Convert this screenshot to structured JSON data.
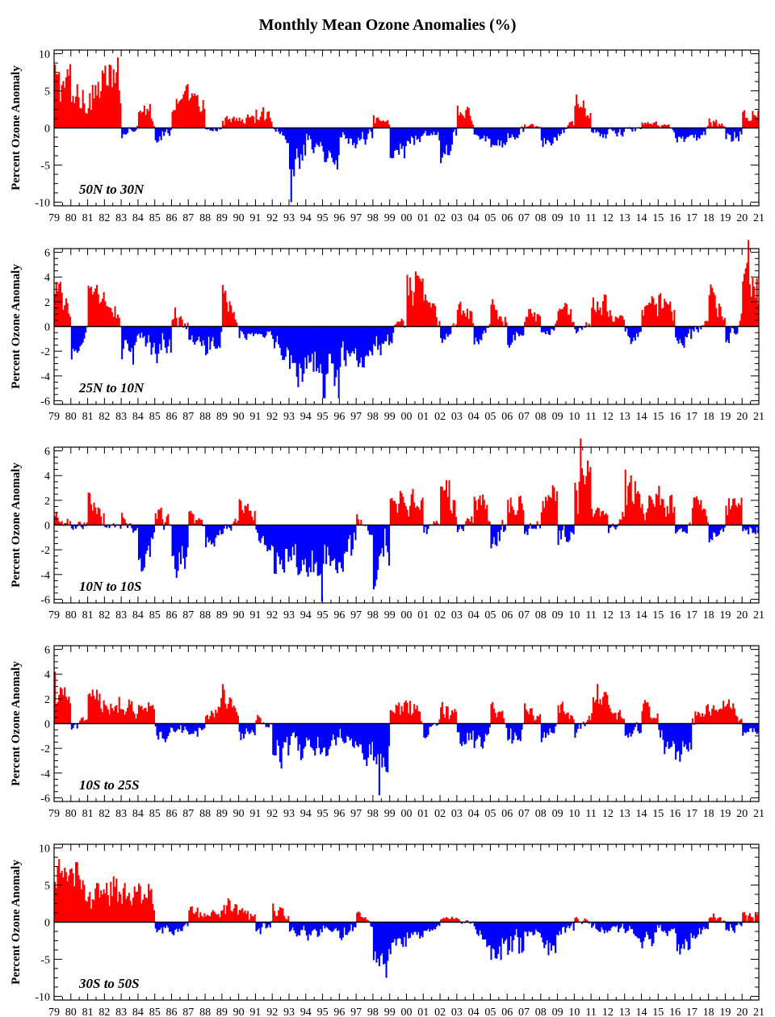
{
  "title": "Monthly Mean Ozone Anomalies (%)",
  "colors": {
    "positive": "#ff0000",
    "negative": "#0000ff",
    "axis": "#000000"
  },
  "chart_data": [
    {
      "type": "bar",
      "region": "50N to 30N",
      "ylabel": "Percent Ozone Anomaly",
      "ylim": [
        -10.5,
        10.5
      ],
      "yticks": [
        -10,
        -5,
        0,
        5,
        10
      ],
      "xlim": [
        1979,
        2021
      ],
      "xtick_labels": [
        "79",
        "80",
        "81",
        "82",
        "83",
        "84",
        "85",
        "86",
        "87",
        "88",
        "89",
        "90",
        "91",
        "92",
        "93",
        "94",
        "95",
        "96",
        "97",
        "98",
        "99",
        "00",
        "01",
        "02",
        "03",
        "04",
        "05",
        "06",
        "07",
        "08",
        "09",
        "10",
        "11",
        "12",
        "13",
        "14",
        "15",
        "16",
        "17",
        "18",
        "19",
        "20",
        "21"
      ],
      "months_per_year": 12,
      "annual_anomaly": [
        6.0,
        4.0,
        4.5,
        6.5,
        -0.8,
        3.0,
        -1.5,
        3.0,
        3.5,
        -0.6,
        1.2,
        1.0,
        1.8,
        0.3,
        -5.0,
        -1.5,
        -4.0,
        -1.2,
        -2.0,
        1.5,
        -3.0,
        -1.5,
        -0.5,
        -3.0,
        2.0,
        -1.0,
        -1.5,
        -1.0,
        0.5,
        -2.0,
        -1.0,
        3.0,
        -0.8,
        -0.8,
        -0.5,
        0.6,
        0.3,
        -1.5,
        -1.2,
        0.8,
        -1.5,
        1.5
      ],
      "min_value": -10.0,
      "max_value": 9.5,
      "grid": false
    },
    {
      "type": "bar",
      "region": "25N to 10N",
      "ylabel": "Percent Ozone Anomaly",
      "ylim": [
        -6.3,
        6.3
      ],
      "yticks": [
        -6,
        -4,
        -2,
        0,
        2,
        4,
        6
      ],
      "xlim": [
        1979,
        2021
      ],
      "xtick_labels": [
        "79",
        "80",
        "81",
        "82",
        "83",
        "84",
        "85",
        "86",
        "87",
        "88",
        "89",
        "90",
        "91",
        "92",
        "93",
        "94",
        "95",
        "96",
        "97",
        "98",
        "99",
        "00",
        "01",
        "02",
        "03",
        "04",
        "05",
        "06",
        "07",
        "08",
        "09",
        "10",
        "11",
        "12",
        "13",
        "14",
        "15",
        "16",
        "17",
        "18",
        "19",
        "20",
        "21"
      ],
      "months_per_year": 12,
      "annual_anomaly": [
        2.5,
        -1.5,
        2.0,
        1.5,
        -2.0,
        -1.0,
        -2.5,
        1.0,
        -1.0,
        -1.5,
        2.0,
        -0.5,
        -0.3,
        -1.5,
        -3.0,
        -2.0,
        -4.5,
        -2.0,
        -2.5,
        -1.5,
        -1.0,
        3.0,
        1.5,
        -1.0,
        1.2,
        -1.0,
        1.5,
        -1.0,
        1.0,
        -0.5,
        1.5,
        -0.3,
        1.5,
        1.0,
        -1.0,
        2.0,
        2.0,
        -1.0,
        -0.5,
        2.0,
        -1.0,
        3.0
      ],
      "min_value": -5.8,
      "max_value": 7.0,
      "grid": false
    },
    {
      "type": "bar",
      "region": "10N to 10S",
      "ylabel": "Percent Ozone Anomaly",
      "ylim": [
        -6.3,
        6.3
      ],
      "yticks": [
        -6,
        -4,
        -2,
        0,
        2,
        4,
        6
      ],
      "xlim": [
        1979,
        2021
      ],
      "xtick_labels": [
        "79",
        "80",
        "81",
        "82",
        "83",
        "84",
        "85",
        "86",
        "87",
        "88",
        "89",
        "90",
        "91",
        "92",
        "93",
        "94",
        "95",
        "96",
        "97",
        "98",
        "99",
        "00",
        "01",
        "02",
        "03",
        "04",
        "05",
        "06",
        "07",
        "08",
        "09",
        "10",
        "11",
        "12",
        "13",
        "14",
        "15",
        "16",
        "17",
        "18",
        "19",
        "20",
        "21"
      ],
      "months_per_year": 12,
      "annual_anomaly": [
        0.5,
        -0.5,
        2.0,
        -0.5,
        0.8,
        -2.5,
        1.5,
        -3.0,
        1.0,
        -1.0,
        -0.5,
        1.5,
        -1.0,
        -2.5,
        -3.0,
        -3.5,
        -2.5,
        -2.5,
        0.8,
        -3.5,
        2.5,
        2.5,
        -1.0,
        3.0,
        -0.5,
        2.0,
        -1.5,
        2.0,
        -1.0,
        3.0,
        -2.0,
        4.0,
        1.0,
        -0.5,
        3.0,
        1.5,
        2.0,
        -0.5,
        1.5,
        -1.0,
        2.5,
        -0.5
      ],
      "min_value": -6.2,
      "max_value": 7.0,
      "grid": false
    },
    {
      "type": "bar",
      "region": "10S to 25S",
      "ylabel": "Percent Ozone Anomaly",
      "ylim": [
        -6.3,
        6.3
      ],
      "yticks": [
        -6,
        -4,
        -2,
        0,
        2,
        4,
        6
      ],
      "xlim": [
        1979,
        2021
      ],
      "xtick_labels": [
        "79",
        "80",
        "81",
        "82",
        "83",
        "84",
        "85",
        "86",
        "87",
        "88",
        "89",
        "90",
        "91",
        "92",
        "93",
        "94",
        "95",
        "96",
        "97",
        "98",
        "99",
        "00",
        "01",
        "02",
        "03",
        "04",
        "05",
        "06",
        "07",
        "08",
        "09",
        "10",
        "11",
        "12",
        "13",
        "14",
        "15",
        "16",
        "17",
        "18",
        "19",
        "20",
        "21"
      ],
      "months_per_year": 12,
      "annual_anomaly": [
        2.5,
        -0.5,
        2.0,
        2.0,
        1.0,
        1.5,
        -1.0,
        -0.5,
        -1.0,
        1.0,
        2.0,
        -1.0,
        0.5,
        -2.5,
        -2.0,
        -2.0,
        -1.5,
        -1.0,
        -2.0,
        -3.5,
        1.5,
        1.5,
        -0.5,
        1.5,
        -1.0,
        -1.5,
        1.0,
        -1.5,
        1.0,
        -1.0,
        1.0,
        -0.5,
        2.0,
        1.0,
        -1.0,
        1.5,
        -1.5,
        -2.0,
        1.0,
        1.0,
        1.0,
        -0.5
      ],
      "min_value": -5.8,
      "max_value": 4.2,
      "grid": false
    },
    {
      "type": "bar",
      "region": "30S to 50S",
      "ylabel": "Percent Ozone Anomaly",
      "ylim": [
        -10.5,
        10.5
      ],
      "yticks": [
        -10,
        -5,
        0,
        5,
        10
      ],
      "xlim": [
        1979,
        2021
      ],
      "xtick_labels": [
        "79",
        "80",
        "81",
        "82",
        "83",
        "84",
        "85",
        "86",
        "87",
        "88",
        "89",
        "90",
        "91",
        "92",
        "93",
        "94",
        "95",
        "96",
        "97",
        "98",
        "99",
        "00",
        "01",
        "02",
        "03",
        "04",
        "05",
        "06",
        "07",
        "08",
        "09",
        "10",
        "11",
        "12",
        "13",
        "14",
        "15",
        "16",
        "17",
        "18",
        "19",
        "20",
        "21"
      ],
      "months_per_year": 12,
      "annual_anomaly": [
        5.0,
        6.0,
        4.0,
        4.5,
        3.5,
        4.5,
        -1.0,
        -1.5,
        1.5,
        1.0,
        2.5,
        2.0,
        -1.5,
        1.5,
        -1.0,
        -1.5,
        -0.5,
        -1.5,
        1.0,
        -4.0,
        -2.5,
        -1.5,
        -1.0,
        0.3,
        0.3,
        -1.5,
        -3.0,
        -4.0,
        -1.0,
        -3.0,
        -1.5,
        0.5,
        -1.0,
        -1.0,
        -1.5,
        -2.5,
        -1.0,
        -3.0,
        -1.5,
        0.8,
        -1.0,
        1.0
      ],
      "min_value": -7.5,
      "max_value": 8.5,
      "grid": false
    }
  ]
}
